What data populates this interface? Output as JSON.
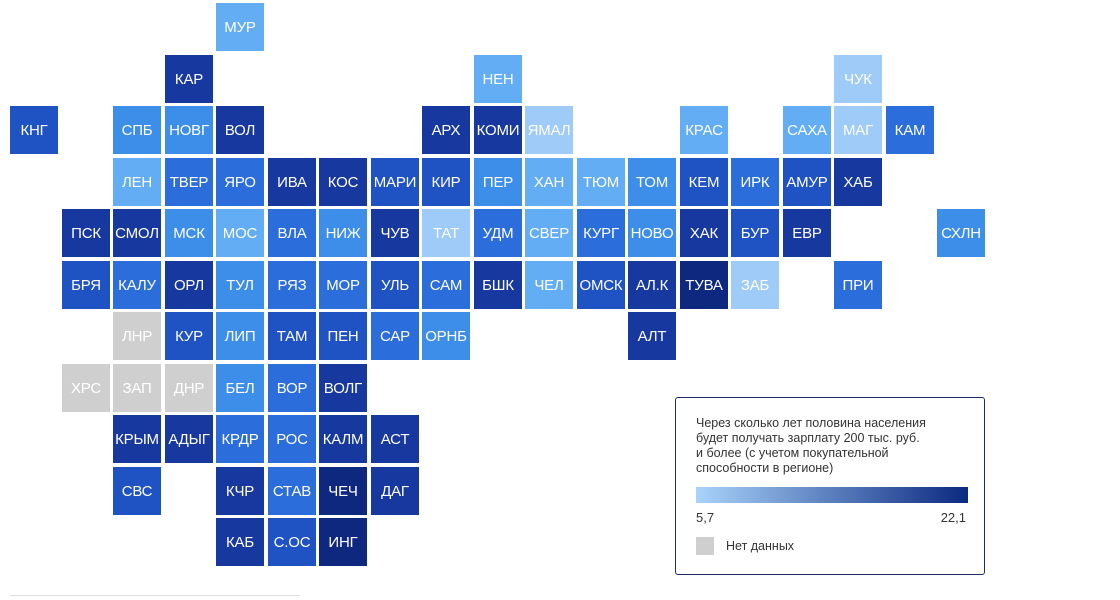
{
  "map": {
    "palette": {
      "l1": "#9ecbf8",
      "l2": "#62adf3",
      "l3": "#3d8ee9",
      "l4": "#2a6ddb",
      "l5": "#1f52c3",
      "l6": "#17389e",
      "l7": "#0e2880",
      "nodata": "#cfcfcf"
    },
    "regions": [
      {
        "label": "МУР",
        "row": 0,
        "col": 4,
        "shade": "l2"
      },
      {
        "label": "КАР",
        "row": 1,
        "col": 3,
        "shade": "l6"
      },
      {
        "label": "НЕН",
        "row": 1,
        "col": 9,
        "shade": "l2"
      },
      {
        "label": "ЧУК",
        "row": 1,
        "col": 16,
        "shade": "l1"
      },
      {
        "label": "КНГ",
        "row": 2,
        "col": 0,
        "shade": "l5"
      },
      {
        "label": "СПБ",
        "row": 2,
        "col": 2,
        "shade": "l3"
      },
      {
        "label": "НОВГ",
        "row": 2,
        "col": 3,
        "shade": "l3"
      },
      {
        "label": "ВОЛ",
        "row": 2,
        "col": 4,
        "shade": "l6"
      },
      {
        "label": "АРХ",
        "row": 2,
        "col": 8,
        "shade": "l6"
      },
      {
        "label": "КОМИ",
        "row": 2,
        "col": 9,
        "shade": "l6"
      },
      {
        "label": "ЯМАЛ",
        "row": 2,
        "col": 10,
        "shade": "l1"
      },
      {
        "label": "КРАС",
        "row": 2,
        "col": 13,
        "shade": "l2"
      },
      {
        "label": "САХА",
        "row": 2,
        "col": 15,
        "shade": "l2"
      },
      {
        "label": "МАГ",
        "row": 2,
        "col": 16,
        "shade": "l1"
      },
      {
        "label": "КАМ",
        "row": 2,
        "col": 17,
        "shade": "l4"
      },
      {
        "label": "ЛЕН",
        "row": 3,
        "col": 2,
        "shade": "l2"
      },
      {
        "label": "ТВЕР",
        "row": 3,
        "col": 3,
        "shade": "l4"
      },
      {
        "label": "ЯРО",
        "row": 3,
        "col": 4,
        "shade": "l4"
      },
      {
        "label": "ИВА",
        "row": 3,
        "col": 5,
        "shade": "l6"
      },
      {
        "label": "КОС",
        "row": 3,
        "col": 6,
        "shade": "l6"
      },
      {
        "label": "МАРИ",
        "row": 3,
        "col": 7,
        "shade": "l5"
      },
      {
        "label": "КИР",
        "row": 3,
        "col": 8,
        "shade": "l5"
      },
      {
        "label": "ПЕР",
        "row": 3,
        "col": 9,
        "shade": "l3"
      },
      {
        "label": "ХАН",
        "row": 3,
        "col": 10,
        "shade": "l2"
      },
      {
        "label": "ТЮМ",
        "row": 3,
        "col": 11,
        "shade": "l2"
      },
      {
        "label": "ТОМ",
        "row": 3,
        "col": 12,
        "shade": "l3"
      },
      {
        "label": "КЕМ",
        "row": 3,
        "col": 13,
        "shade": "l5"
      },
      {
        "label": "ИРК",
        "row": 3,
        "col": 14,
        "shade": "l4"
      },
      {
        "label": "АМУР",
        "row": 3,
        "col": 15,
        "shade": "l5"
      },
      {
        "label": "ХАБ",
        "row": 3,
        "col": 16,
        "shade": "l6"
      },
      {
        "label": "ПСК",
        "row": 4,
        "col": 1,
        "shade": "l6"
      },
      {
        "label": "СМОЛ",
        "row": 4,
        "col": 2,
        "shade": "l6"
      },
      {
        "label": "МСК",
        "row": 4,
        "col": 3,
        "shade": "l3"
      },
      {
        "label": "МОС",
        "row": 4,
        "col": 4,
        "shade": "l2"
      },
      {
        "label": "ВЛА",
        "row": 4,
        "col": 5,
        "shade": "l4"
      },
      {
        "label": "НИЖ",
        "row": 4,
        "col": 6,
        "shade": "l3"
      },
      {
        "label": "ЧУВ",
        "row": 4,
        "col": 7,
        "shade": "l6"
      },
      {
        "label": "ТАТ",
        "row": 4,
        "col": 8,
        "shade": "l1"
      },
      {
        "label": "УДМ",
        "row": 4,
        "col": 9,
        "shade": "l4"
      },
      {
        "label": "СВЕР",
        "row": 4,
        "col": 10,
        "shade": "l2"
      },
      {
        "label": "КУРГ",
        "row": 4,
        "col": 11,
        "shade": "l4"
      },
      {
        "label": "НОВО",
        "row": 4,
        "col": 12,
        "shade": "l3"
      },
      {
        "label": "ХАК",
        "row": 4,
        "col": 13,
        "shade": "l6"
      },
      {
        "label": "БУР",
        "row": 4,
        "col": 14,
        "shade": "l5"
      },
      {
        "label": "ЕВР",
        "row": 4,
        "col": 15,
        "shade": "l6"
      },
      {
        "label": "СХЛН",
        "row": 4,
        "col": 18,
        "shade": "l3"
      },
      {
        "label": "БРЯ",
        "row": 5,
        "col": 1,
        "shade": "l5"
      },
      {
        "label": "КАЛУ",
        "row": 5,
        "col": 2,
        "shade": "l4"
      },
      {
        "label": "ОРЛ",
        "row": 5,
        "col": 3,
        "shade": "l6"
      },
      {
        "label": "ТУЛ",
        "row": 5,
        "col": 4,
        "shade": "l3"
      },
      {
        "label": "РЯЗ",
        "row": 5,
        "col": 5,
        "shade": "l4"
      },
      {
        "label": "МОР",
        "row": 5,
        "col": 6,
        "shade": "l4"
      },
      {
        "label": "УЛЬ",
        "row": 5,
        "col": 7,
        "shade": "l5"
      },
      {
        "label": "САМ",
        "row": 5,
        "col": 8,
        "shade": "l4"
      },
      {
        "label": "БШК",
        "row": 5,
        "col": 9,
        "shade": "l6"
      },
      {
        "label": "ЧЕЛ",
        "row": 5,
        "col": 10,
        "shade": "l2"
      },
      {
        "label": "ОМСК",
        "row": 5,
        "col": 11,
        "shade": "l5"
      },
      {
        "label": "АЛ.К",
        "row": 5,
        "col": 12,
        "shade": "l6"
      },
      {
        "label": "ТУВА",
        "row": 5,
        "col": 13,
        "shade": "l7"
      },
      {
        "label": "ЗАБ",
        "row": 5,
        "col": 14,
        "shade": "l1"
      },
      {
        "label": "ПРИ",
        "row": 5,
        "col": 16,
        "shade": "l4"
      },
      {
        "label": "ЛНР",
        "row": 6,
        "col": 2,
        "shade": "nodata"
      },
      {
        "label": "КУР",
        "row": 6,
        "col": 3,
        "shade": "l5"
      },
      {
        "label": "ЛИП",
        "row": 6,
        "col": 4,
        "shade": "l3"
      },
      {
        "label": "ТАМ",
        "row": 6,
        "col": 5,
        "shade": "l5"
      },
      {
        "label": "ПЕН",
        "row": 6,
        "col": 6,
        "shade": "l5"
      },
      {
        "label": "САР",
        "row": 6,
        "col": 7,
        "shade": "l4"
      },
      {
        "label": "ОРНБ",
        "row": 6,
        "col": 8,
        "shade": "l3"
      },
      {
        "label": "АЛТ",
        "row": 6,
        "col": 12,
        "shade": "l6"
      },
      {
        "label": "ХРС",
        "row": 7,
        "col": 1,
        "shade": "nodata"
      },
      {
        "label": "ЗАП",
        "row": 7,
        "col": 2,
        "shade": "nodata"
      },
      {
        "label": "ДНР",
        "row": 7,
        "col": 3,
        "shade": "nodata"
      },
      {
        "label": "БЕЛ",
        "row": 7,
        "col": 4,
        "shade": "l3"
      },
      {
        "label": "ВОР",
        "row": 7,
        "col": 5,
        "shade": "l4"
      },
      {
        "label": "ВОЛГ",
        "row": 7,
        "col": 6,
        "shade": "l6"
      },
      {
        "label": "КРЫМ",
        "row": 8,
        "col": 2,
        "shade": "l6"
      },
      {
        "label": "АДЫГ",
        "row": 8,
        "col": 3,
        "shade": "l6"
      },
      {
        "label": "КРДР",
        "row": 8,
        "col": 4,
        "shade": "l4"
      },
      {
        "label": "РОС",
        "row": 8,
        "col": 5,
        "shade": "l4"
      },
      {
        "label": "КАЛМ",
        "row": 8,
        "col": 6,
        "shade": "l6"
      },
      {
        "label": "АСТ",
        "row": 8,
        "col": 7,
        "shade": "l6"
      },
      {
        "label": "СВС",
        "row": 9,
        "col": 2,
        "shade": "l5"
      },
      {
        "label": "КЧР",
        "row": 9,
        "col": 4,
        "shade": "l6"
      },
      {
        "label": "СТАВ",
        "row": 9,
        "col": 5,
        "shade": "l4"
      },
      {
        "label": "ЧЕЧ",
        "row": 9,
        "col": 6,
        "shade": "l7"
      },
      {
        "label": "ДАГ",
        "row": 9,
        "col": 7,
        "shade": "l6"
      },
      {
        "label": "КАБ",
        "row": 10,
        "col": 4,
        "shade": "l6"
      },
      {
        "label": "С.ОС",
        "row": 10,
        "col": 5,
        "shade": "l5"
      },
      {
        "label": "ИНГ",
        "row": 10,
        "col": 6,
        "shade": "l7"
      }
    ]
  },
  "legend": {
    "title": "Через сколько лет половина населения\nбудет получать зарплату 200 тыс. руб.\nи более (с учетом покупательной\nспособности в регионе)",
    "min_label": "5,7",
    "max_label": "22,1",
    "nodata_label": "Нет данных",
    "gradient_start": "#a9d3fa",
    "gradient_end": "#0b2980"
  }
}
